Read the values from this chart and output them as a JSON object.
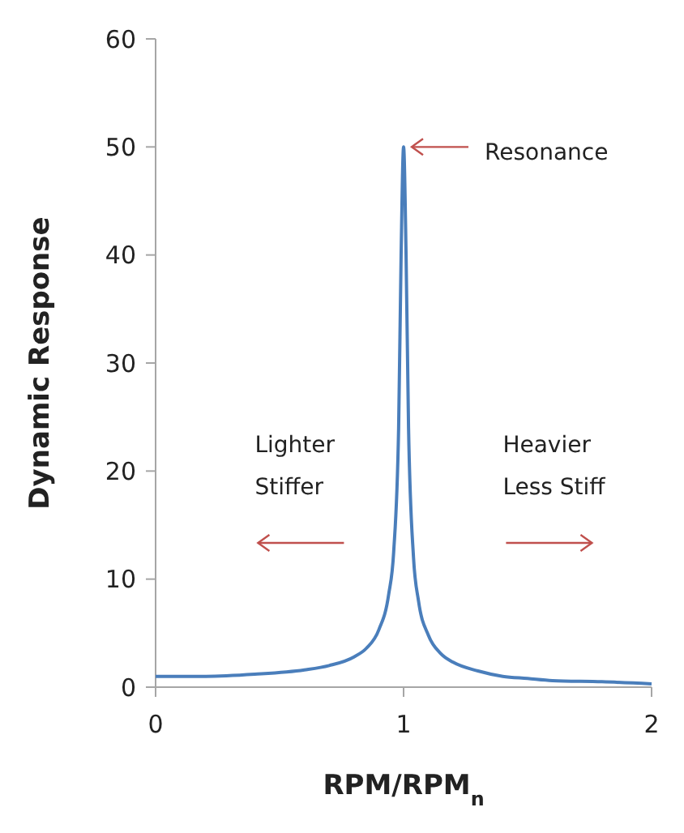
{
  "chart_data": {
    "type": "line",
    "xlabel": "RPM/RPM$_{n}$",
    "ylabel": "Dynamic Response",
    "xlim": [
      0,
      2
    ],
    "xticks": [
      0,
      1,
      2
    ],
    "ylim": [
      0,
      60
    ],
    "yticks": [
      0,
      10,
      20,
      30,
      40,
      50,
      60
    ],
    "grid": false,
    "marker": "none",
    "line_style": "solid",
    "series": [
      {
        "color": "#4a7ebb",
        "x": [
          0,
          0.2,
          0.4,
          0.6,
          0.7,
          0.8,
          0.85,
          0.9,
          0.94,
          0.96,
          0.98,
          0.99,
          1,
          1.01,
          1.02,
          1.04,
          1.06,
          1.1,
          1.15,
          1.2,
          1.3,
          1.4,
          1.5,
          1.6,
          1.8,
          2
        ],
        "values": [
          1,
          1,
          1.2,
          1.6,
          2,
          2.8,
          3.6,
          5.3,
          8.6,
          12.5,
          24,
          40,
          50,
          40,
          24,
          12,
          8,
          4.8,
          3.1,
          2.3,
          1.5,
          1,
          0.8,
          0.6,
          0.5,
          0.3
        ]
      }
    ],
    "annotations": [
      {
        "text": "Resonance",
        "x": 1,
        "y": 50
      },
      "Lighter\nStiffer",
      "Heavier\nLess Stiff"
    ]
  }
}
